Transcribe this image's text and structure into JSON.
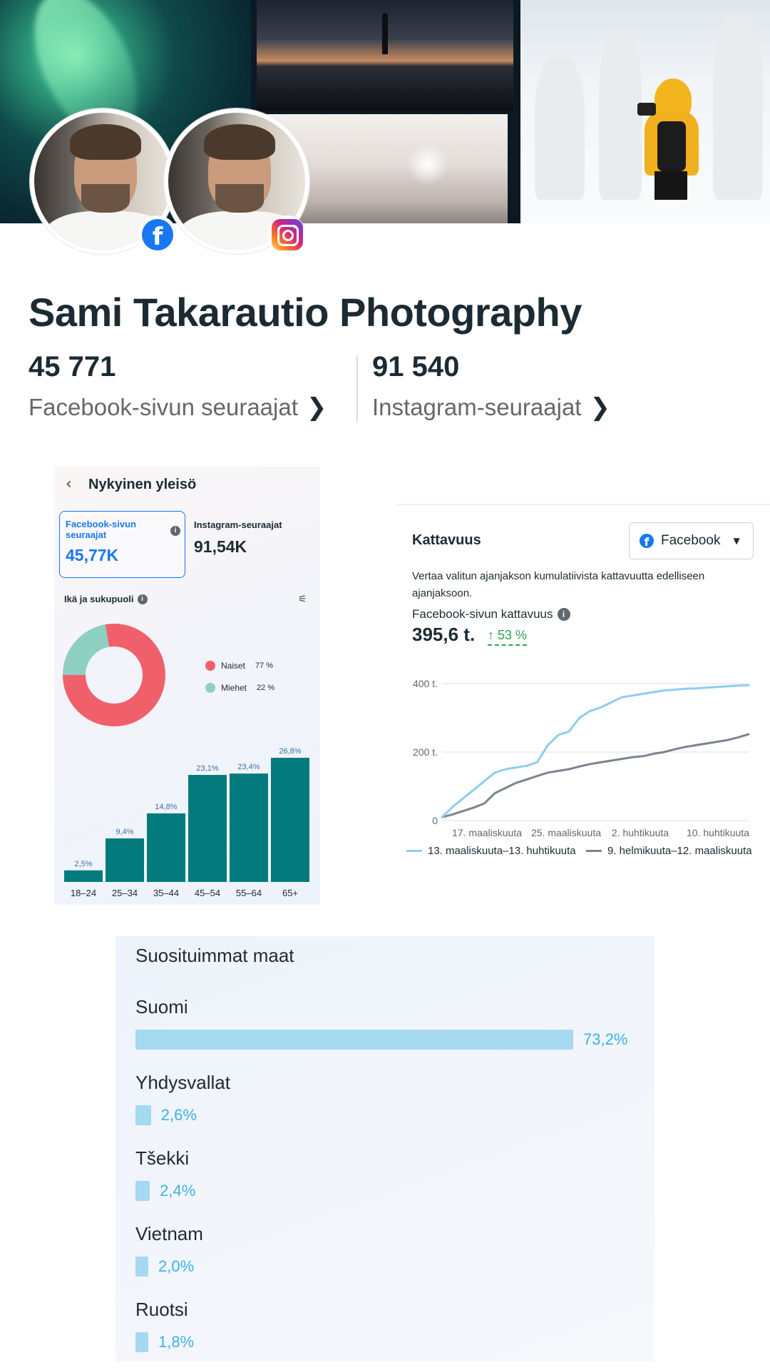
{
  "profile": {
    "title": "Sami Takarautio Photography",
    "facebook_followers": "45 771",
    "facebook_followers_label": "Facebook-sivun seuraajat",
    "instagram_followers": "91 540",
    "instagram_followers_label": "Instagram-seuraajat"
  },
  "audience": {
    "header": "Nykyinen yleisö",
    "facebook_tile_label": "Facebook-sivun seuraajat",
    "facebook_tile_value": "45,77K",
    "instagram_label": "Instagram-seuraajat",
    "instagram_value": "91,54K",
    "section_title": "Ikä ja sukupuoli",
    "gender": [
      {
        "label": "Naiset",
        "pct": "77 %",
        "value": 77,
        "color": "#f0606b"
      },
      {
        "label": "Miehet",
        "pct": "22 %",
        "value": 22,
        "color": "#8dd0c1"
      }
    ]
  },
  "reach": {
    "title": "Kattavuus",
    "platform": "Facebook",
    "description": "Vertaa valitun ajanjakson kumulatiivista kattavuutta edelliseen ajanjaksoon.",
    "metric_label": "Facebook-sivun kattavuus",
    "metric_value": "395,6 t.",
    "delta": "↑ 53 %"
  },
  "countries": {
    "title": "Suosituimmat maat",
    "items": [
      {
        "name": "Suomi",
        "pct": "73,2%",
        "value": 73.2
      },
      {
        "name": "Yhdysvallat",
        "pct": "2,6%",
        "value": 2.6
      },
      {
        "name": "Tšekki",
        "pct": "2,4%",
        "value": 2.4
      },
      {
        "name": "Vietnam",
        "pct": "2,0%",
        "value": 2.0
      },
      {
        "name": "Ruotsi",
        "pct": "1,8%",
        "value": 1.8
      }
    ]
  },
  "chart_data": [
    {
      "type": "bar",
      "categories": [
        "18–24",
        "25–34",
        "35–44",
        "45–54",
        "55–64",
        "65+"
      ],
      "values": [
        2.5,
        9.4,
        14.8,
        23.1,
        23.4,
        26.8
      ],
      "labels": [
        "2,5%",
        "9,4%",
        "14,8%",
        "23,1%",
        "23,4%",
        "26,8%"
      ],
      "color": "#037b7e",
      "ylim": [
        0,
        26.8
      ]
    },
    {
      "type": "line",
      "x_ticks": [
        "17. maaliskuuta",
        "25. maaliskuuta",
        "2. huhtikuuta",
        "10. huhtikuuta"
      ],
      "y_ticks": [
        "0",
        "200 t.",
        "400 t."
      ],
      "ylim": [
        0,
        400
      ],
      "series": [
        {
          "name": "13. maaliskuuta–13. huhtikuuta",
          "color": "#8ecdf0",
          "values": [
            10,
            40,
            65,
            90,
            115,
            140,
            150,
            155,
            160,
            170,
            220,
            250,
            260,
            300,
            320,
            330,
            345,
            360,
            365,
            370,
            375,
            380,
            382,
            385,
            386,
            388,
            390,
            392,
            394,
            395
          ]
        },
        {
          "name": "9. helmikuuta–12. maaliskuuta",
          "color": "#7a8590",
          "values": [
            10,
            18,
            28,
            38,
            50,
            80,
            95,
            110,
            120,
            130,
            140,
            145,
            150,
            158,
            165,
            170,
            175,
            180,
            185,
            188,
            195,
            200,
            208,
            215,
            220,
            225,
            230,
            235,
            243,
            252
          ]
        }
      ]
    }
  ]
}
